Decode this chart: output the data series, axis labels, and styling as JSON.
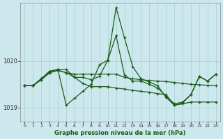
{
  "title": "Graphe pression niveau de la mer (hPa)",
  "bg_color": "#cde8ed",
  "grid_color": "#b8d8de",
  "line_color": "#1a5c1a",
  "x_labels": [
    "0",
    "1",
    "2",
    "3",
    "4",
    "5",
    "6",
    "7",
    "8",
    "9",
    "10",
    "11",
    "12",
    "13",
    "14",
    "15",
    "16",
    "17",
    "18",
    "19",
    "20",
    "21",
    "22",
    "23"
  ],
  "ylim_low": 1018.7,
  "ylim_high": 1021.25,
  "yticks": [
    1019,
    1020
  ],
  "line1_y": [
    1019.47,
    1019.47,
    1019.6,
    1019.75,
    1019.8,
    1019.75,
    1019.72,
    1019.72,
    1019.72,
    1019.72,
    1019.72,
    1019.72,
    1019.65,
    1019.62,
    1019.6,
    1019.58,
    1019.57,
    1019.56,
    1019.54,
    1019.52,
    1019.5,
    1019.49,
    1019.48,
    1019.47
  ],
  "line2_y": [
    1019.47,
    1019.47,
    1019.62,
    1019.78,
    1019.82,
    1019.05,
    1019.2,
    1019.35,
    1019.5,
    1019.92,
    1020.02,
    1021.15,
    1020.5,
    1019.88,
    1019.62,
    1019.55,
    1019.47,
    1019.22,
    1019.05,
    1019.1,
    1019.28,
    1019.67,
    1019.57,
    1019.72
  ],
  "line3_y": [
    1019.47,
    1019.47,
    1019.62,
    1019.78,
    1019.82,
    1019.82,
    1019.65,
    1019.65,
    1019.6,
    1019.67,
    1020.02,
    1020.55,
    1019.7,
    1019.57,
    1019.57,
    1019.5,
    1019.42,
    1019.25,
    1019.08,
    1019.12,
    1019.28,
    1019.67,
    1019.57,
    1019.72
  ],
  "line4_y": [
    1019.47,
    1019.47,
    1019.6,
    1019.75,
    1019.8,
    1019.75,
    1019.65,
    1019.52,
    1019.45,
    1019.45,
    1019.45,
    1019.42,
    1019.4,
    1019.37,
    1019.35,
    1019.33,
    1019.3,
    1019.28,
    1019.05,
    1019.08,
    1019.12,
    1019.12,
    1019.12,
    1019.12
  ]
}
